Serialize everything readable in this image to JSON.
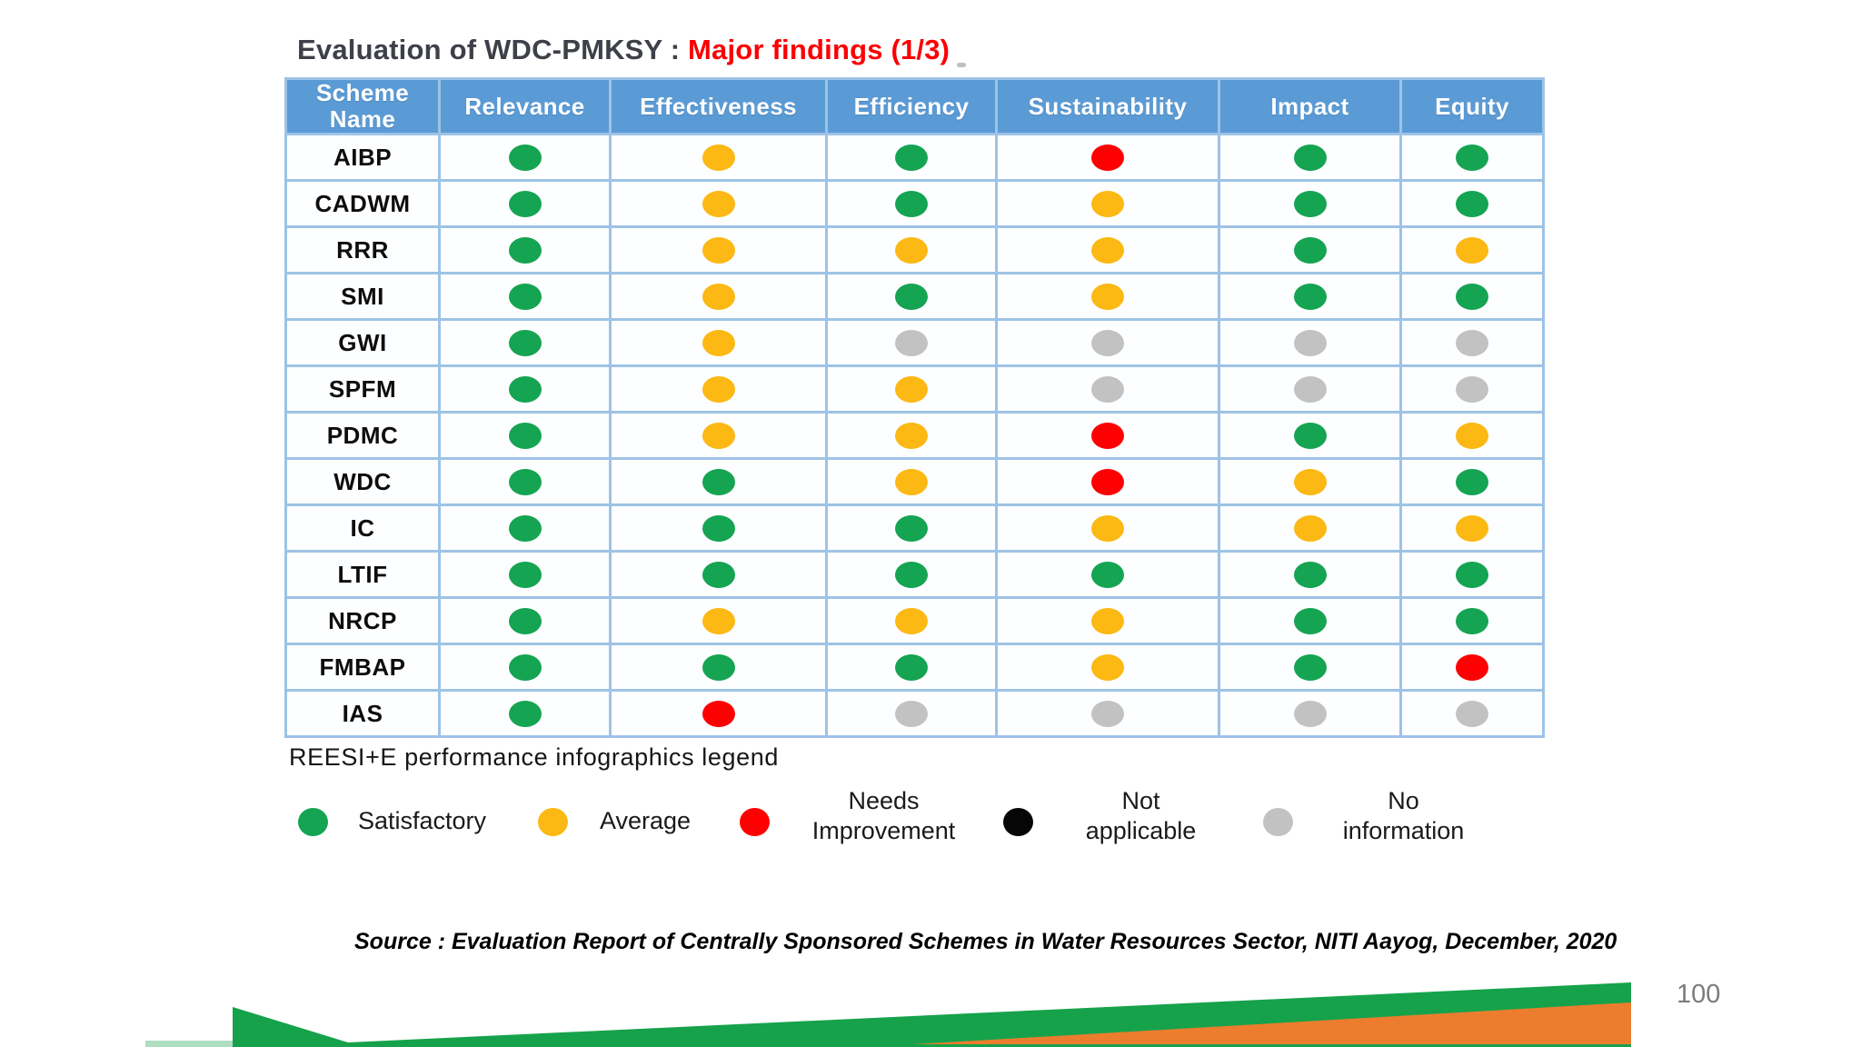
{
  "title": {
    "prefix": "Evaluation of WDC-PMKSY : ",
    "highlight": "Major findings (1/3)"
  },
  "table": {
    "headers": [
      "Scheme Name",
      "Relevance",
      "Effectiveness",
      "Efficiency",
      "Sustainability",
      "Impact",
      "Equity"
    ],
    "rows": [
      {
        "scheme": "AIBP",
        "ratings": [
          "green",
          "yellow",
          "green",
          "red",
          "green",
          "green"
        ]
      },
      {
        "scheme": "CADWM",
        "ratings": [
          "green",
          "yellow",
          "green",
          "yellow",
          "green",
          "green"
        ]
      },
      {
        "scheme": "RRR",
        "ratings": [
          "green",
          "yellow",
          "yellow",
          "yellow",
          "green",
          "yellow"
        ]
      },
      {
        "scheme": "SMI",
        "ratings": [
          "green",
          "yellow",
          "green",
          "yellow",
          "green",
          "green"
        ]
      },
      {
        "scheme": "GWI",
        "ratings": [
          "green",
          "yellow",
          "gray",
          "gray",
          "gray",
          "gray"
        ]
      },
      {
        "scheme": "SPFM",
        "ratings": [
          "green",
          "yellow",
          "yellow",
          "gray",
          "gray",
          "gray"
        ]
      },
      {
        "scheme": "PDMC",
        "ratings": [
          "green",
          "yellow",
          "yellow",
          "red",
          "green",
          "yellow"
        ]
      },
      {
        "scheme": "WDC",
        "ratings": [
          "green",
          "green",
          "yellow",
          "red",
          "yellow",
          "green"
        ]
      },
      {
        "scheme": "IC",
        "ratings": [
          "green",
          "green",
          "green",
          "yellow",
          "yellow",
          "yellow"
        ]
      },
      {
        "scheme": "LTIF",
        "ratings": [
          "green",
          "green",
          "green",
          "green",
          "green",
          "green"
        ]
      },
      {
        "scheme": "NRCP",
        "ratings": [
          "green",
          "yellow",
          "yellow",
          "yellow",
          "green",
          "green"
        ]
      },
      {
        "scheme": "FMBAP",
        "ratings": [
          "green",
          "green",
          "green",
          "yellow",
          "green",
          "red"
        ]
      },
      {
        "scheme": "IAS",
        "ratings": [
          "green",
          "red",
          "gray",
          "gray",
          "gray",
          "gray"
        ]
      }
    ]
  },
  "legend": {
    "title": "REESI+E performance infographics legend",
    "items": [
      {
        "color": "green",
        "label": "Satisfactory",
        "lines": 1
      },
      {
        "color": "yellow",
        "label": "Average",
        "lines": 1
      },
      {
        "color": "red",
        "label": "Needs\nImprovement",
        "lines": 2
      },
      {
        "color": "black",
        "label": "Not\napplicable",
        "lines": 2
      },
      {
        "color": "gray",
        "label": "No\ninformation",
        "lines": 2
      }
    ]
  },
  "source_note": "Source : Evaluation Report of Centrally Sponsored Schemes in Water Resources Sector,  NITI  Aayog, December, 2020",
  "page_number": "100",
  "colors": {
    "green": "#15a452",
    "yellow": "#fcb813",
    "red": "#fd0002",
    "gray": "#c2c2c2",
    "black": "#060606",
    "header_bg": "#5b9bd5",
    "grid_blue": "#9dc3e6",
    "title_dark": "#3e4049",
    "title_red": "#fb0003",
    "footer_green": "#16a24b",
    "footer_orange": "#ec7d2e"
  }
}
